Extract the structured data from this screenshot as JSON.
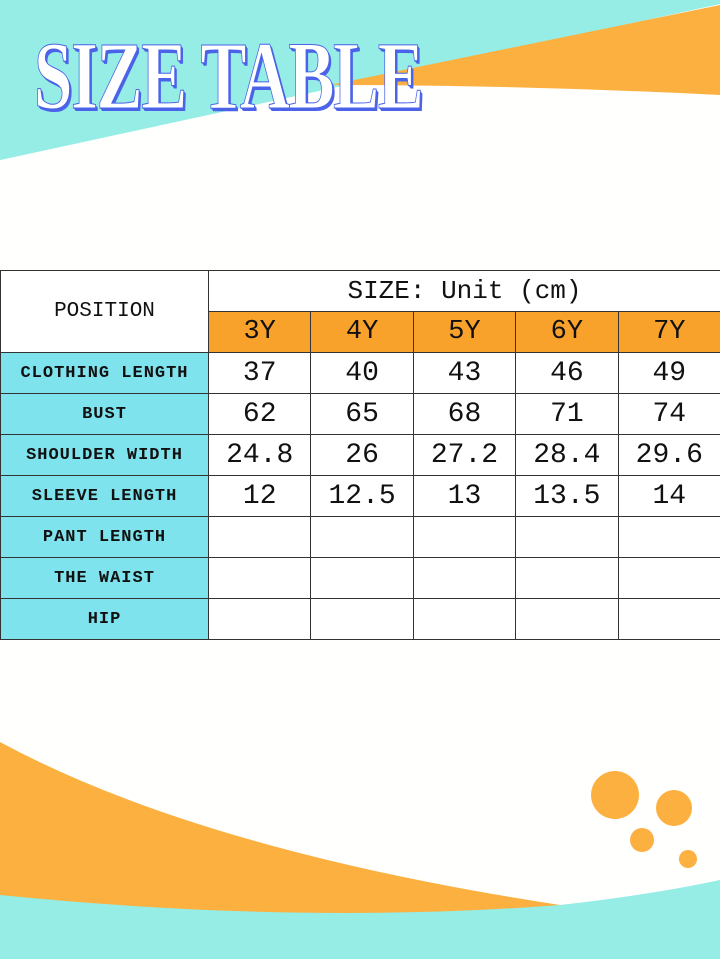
{
  "title": "SIZE TABLE",
  "colors": {
    "cyan": "#95ede6",
    "orange": "#fbb040",
    "header_orange": "#f8a22c",
    "label_cyan": "#7fe3ee",
    "title_shadow": "#4a63e8"
  },
  "table": {
    "position_header": "POSITION",
    "unit_header": "SIZE: Unit (cm)",
    "sizes": [
      "3Y",
      "4Y",
      "5Y",
      "6Y",
      "7Y"
    ],
    "rows": [
      {
        "label": "CLOTHING LENGTH",
        "values": [
          "37",
          "40",
          "43",
          "46",
          "49"
        ]
      },
      {
        "label": "BUST",
        "values": [
          "62",
          "65",
          "68",
          "71",
          "74"
        ]
      },
      {
        "label": "SHOULDER WIDTH",
        "values": [
          "24.8",
          "26",
          "27.2",
          "28.4",
          "29.6"
        ]
      },
      {
        "label": "SLEEVE LENGTH",
        "values": [
          "12",
          "12.5",
          "13",
          "13.5",
          "14"
        ]
      },
      {
        "label": "PANT LENGTH",
        "values": [
          "",
          "",
          "",
          "",
          ""
        ]
      },
      {
        "label": "THE WAIST",
        "values": [
          "",
          "",
          "",
          "",
          ""
        ]
      },
      {
        "label": "HIP",
        "values": [
          "",
          "",
          "",
          "",
          ""
        ]
      }
    ]
  }
}
